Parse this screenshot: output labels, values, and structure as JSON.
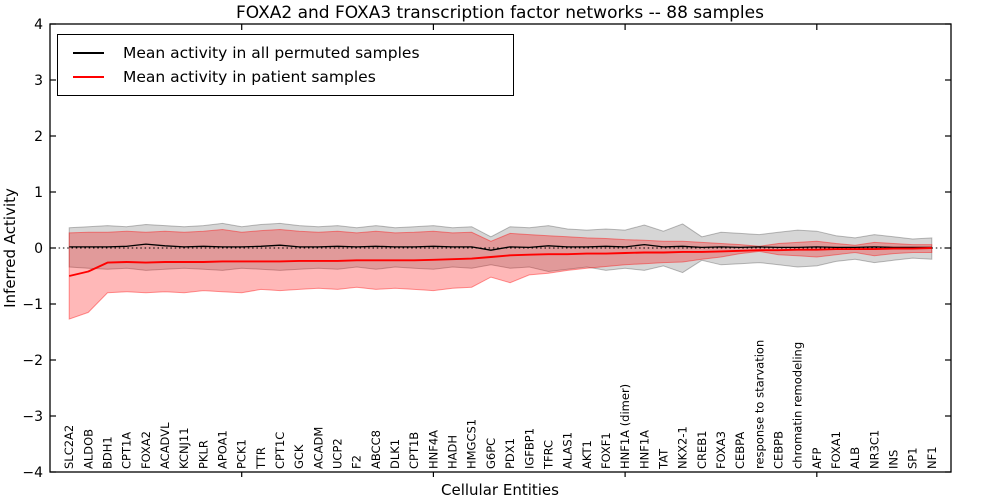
{
  "chart_data": {
    "type": "line",
    "title": "FOXA2 and FOXA3 transcription factor networks -- 88 samples",
    "xlabel": "Cellular Entities",
    "ylabel": "Inferred Activity",
    "ylim": [
      -4,
      4
    ],
    "yticks": [
      4,
      3,
      2,
      1,
      0,
      -1,
      -2,
      -3,
      -4
    ],
    "xtick_units": [
      10,
      20,
      30,
      40
    ],
    "grid": false,
    "legend_position": "upper left",
    "zero_reference_line": true,
    "categories": [
      "SLC2A2",
      "ALDOB",
      "BDH1",
      "CPT1A",
      "FOXA2",
      "ACADVL",
      "KCNJ11",
      "PKLR",
      "APOA1",
      "PCK1",
      "TTR",
      "CPT1C",
      "GCK",
      "ACADM",
      "UCP2",
      "F2",
      "ABCC8",
      "DLK1",
      "CPT1B",
      "HNF4A",
      "HADH",
      "HMGCS1",
      "G6PC",
      "PDX1",
      "IGFBP1",
      "TFRC",
      "ALAS1",
      "AKT1",
      "FOXF1",
      "HNF1A (dimer)",
      "HNF1A",
      "TAT",
      "NKX2-1",
      "CREB1",
      "FOXA3",
      "CEBPA",
      "response to starvation",
      "CEBPB",
      "chromatin remodeling",
      "AFP",
      "FOXA1",
      "ALB",
      "NR3C1",
      "INS",
      "SP1",
      "NF1"
    ],
    "series": [
      {
        "name": "Mean activity in all permuted samples",
        "color": "#000000",
        "values": [
          0.02,
          0.02,
          0.02,
          0.03,
          0.07,
          0.04,
          0.02,
          0.03,
          0.02,
          0.02,
          0.03,
          0.05,
          0.02,
          0.02,
          0.03,
          0.02,
          0.03,
          0.02,
          0.02,
          0.03,
          0.02,
          0.02,
          -0.04,
          0.02,
          0.01,
          0.04,
          0.02,
          0.02,
          0.03,
          0.02,
          0.06,
          0.02,
          0.03,
          0.01,
          0.02,
          0.01,
          0.02,
          0.01,
          0.01,
          0.02,
          0.01,
          0.01,
          0.02,
          0.01,
          0.01,
          0.01
        ],
        "band": {
          "fill": "rgba(0,0,0,0.16)",
          "edge": "rgba(0,0,0,0.25)",
          "upper": [
            0.36,
            0.38,
            0.4,
            0.38,
            0.42,
            0.4,
            0.38,
            0.4,
            0.44,
            0.38,
            0.42,
            0.44,
            0.4,
            0.38,
            0.4,
            0.36,
            0.4,
            0.36,
            0.38,
            0.4,
            0.36,
            0.38,
            0.2,
            0.38,
            0.36,
            0.4,
            0.34,
            0.32,
            0.34,
            0.32,
            0.41,
            0.3,
            0.43,
            0.2,
            0.28,
            0.26,
            0.24,
            0.28,
            0.32,
            0.3,
            0.22,
            0.18,
            0.24,
            0.2,
            0.16,
            0.18
          ],
          "lower": [
            -0.34,
            -0.36,
            -0.38,
            -0.36,
            -0.4,
            -0.38,
            -0.36,
            -0.38,
            -0.4,
            -0.36,
            -0.38,
            -0.4,
            -0.38,
            -0.36,
            -0.38,
            -0.34,
            -0.38,
            -0.34,
            -0.36,
            -0.38,
            -0.34,
            -0.36,
            -0.3,
            -0.36,
            -0.34,
            -0.42,
            -0.38,
            -0.34,
            -0.4,
            -0.36,
            -0.4,
            -0.32,
            -0.44,
            -0.22,
            -0.3,
            -0.28,
            -0.26,
            -0.3,
            -0.34,
            -0.32,
            -0.24,
            -0.2,
            -0.26,
            -0.22,
            -0.18,
            -0.2
          ]
        }
      },
      {
        "name": "Mean activity in patient samples",
        "color": "#ff0000",
        "values": [
          -0.5,
          -0.42,
          -0.26,
          -0.25,
          -0.26,
          -0.25,
          -0.25,
          -0.25,
          -0.24,
          -0.24,
          -0.24,
          -0.24,
          -0.23,
          -0.23,
          -0.23,
          -0.22,
          -0.22,
          -0.22,
          -0.22,
          -0.21,
          -0.2,
          -0.19,
          -0.16,
          -0.13,
          -0.12,
          -0.11,
          -0.11,
          -0.1,
          -0.1,
          -0.09,
          -0.08,
          -0.08,
          -0.07,
          -0.07,
          -0.06,
          -0.05,
          -0.04,
          -0.04,
          -0.03,
          -0.03,
          -0.02,
          -0.02,
          -0.02,
          -0.01,
          -0.01,
          0.0
        ],
        "band": {
          "fill": "rgba(255,0,0,0.28)",
          "edge": "rgba(255,0,0,0.40)",
          "upper": [
            0.27,
            0.28,
            0.28,
            0.3,
            0.28,
            0.3,
            0.28,
            0.3,
            0.33,
            0.28,
            0.31,
            0.33,
            0.3,
            0.28,
            0.3,
            0.27,
            0.3,
            0.27,
            0.28,
            0.3,
            0.27,
            0.28,
            0.12,
            0.26,
            0.24,
            0.22,
            0.2,
            0.18,
            0.17,
            0.15,
            0.14,
            0.12,
            0.12,
            0.1,
            0.08,
            0.06,
            0.03,
            0.08,
            0.1,
            0.12,
            0.08,
            0.05,
            0.1,
            0.08,
            0.06,
            0.06
          ],
          "lower": [
            -1.27,
            -1.15,
            -0.8,
            -0.78,
            -0.8,
            -0.78,
            -0.8,
            -0.76,
            -0.78,
            -0.8,
            -0.74,
            -0.76,
            -0.74,
            -0.72,
            -0.74,
            -0.7,
            -0.74,
            -0.72,
            -0.74,
            -0.76,
            -0.72,
            -0.7,
            -0.52,
            -0.62,
            -0.48,
            -0.45,
            -0.4,
            -0.36,
            -0.33,
            -0.3,
            -0.28,
            -0.26,
            -0.25,
            -0.2,
            -0.16,
            -0.1,
            -0.06,
            -0.12,
            -0.14,
            -0.16,
            -0.12,
            -0.08,
            -0.14,
            -0.1,
            -0.08,
            -0.08
          ]
        }
      }
    ]
  }
}
